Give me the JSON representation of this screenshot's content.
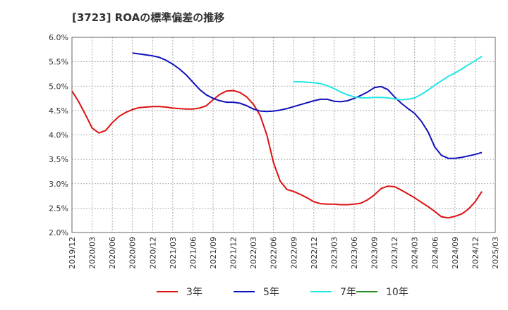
{
  "chart_data": {
    "type": "line",
    "title": "[3723]  ROAの標準偏差の推移",
    "xlabel": "",
    "ylabel": "",
    "ylim": [
      2.0,
      6.0
    ],
    "y_ticks": [
      "2.0%",
      "2.5%",
      "3.0%",
      "3.5%",
      "4.0%",
      "4.5%",
      "5.0%",
      "5.5%",
      "6.0%"
    ],
    "y_tick_values": [
      2.0,
      2.5,
      3.0,
      3.5,
      4.0,
      4.5,
      5.0,
      5.5,
      6.0
    ],
    "x_ticks": [
      "2019/12",
      "2020/03",
      "2020/06",
      "2020/09",
      "2020/12",
      "2021/03",
      "2021/06",
      "2021/09",
      "2021/12",
      "2022/03",
      "2022/06",
      "2022/09",
      "2022/12",
      "2023/03",
      "2023/06",
      "2023/09",
      "2023/12",
      "2024/03",
      "2024/06",
      "2024/09",
      "2024/12",
      "2025/03"
    ],
    "grid": true,
    "legend_position": "bottom",
    "series": [
      {
        "name": "3年",
        "color": "#dd1111",
        "points": [
          [
            "2019/12",
            4.9
          ],
          [
            "2020/01",
            4.68
          ],
          [
            "2020/02",
            4.42
          ],
          [
            "2020/03",
            4.14
          ],
          [
            "2020/04",
            4.04
          ],
          [
            "2020/05",
            4.09
          ],
          [
            "2020/06",
            4.25
          ],
          [
            "2020/07",
            4.38
          ],
          [
            "2020/08",
            4.46
          ],
          [
            "2020/09",
            4.52
          ],
          [
            "2020/10",
            4.56
          ],
          [
            "2020/11",
            4.57
          ],
          [
            "2020/12",
            4.58
          ],
          [
            "2021/01",
            4.58
          ],
          [
            "2021/02",
            4.57
          ],
          [
            "2021/03",
            4.55
          ],
          [
            "2021/04",
            4.54
          ],
          [
            "2021/05",
            4.53
          ],
          [
            "2021/06",
            4.53
          ],
          [
            "2021/07",
            4.55
          ],
          [
            "2021/08",
            4.6
          ],
          [
            "2021/09",
            4.72
          ],
          [
            "2021/10",
            4.83
          ],
          [
            "2021/11",
            4.9
          ],
          [
            "2021/12",
            4.91
          ],
          [
            "2022/01",
            4.87
          ],
          [
            "2022/02",
            4.78
          ],
          [
            "2022/03",
            4.63
          ],
          [
            "2022/04",
            4.4
          ],
          [
            "2022/05",
            4.0
          ],
          [
            "2022/06",
            3.43
          ],
          [
            "2022/07",
            3.05
          ],
          [
            "2022/08",
            2.88
          ],
          [
            "2022/09",
            2.84
          ],
          [
            "2022/10",
            2.78
          ],
          [
            "2022/11",
            2.71
          ],
          [
            "2022/12",
            2.63
          ],
          [
            "2023/01",
            2.59
          ],
          [
            "2023/02",
            2.58
          ],
          [
            "2023/03",
            2.58
          ],
          [
            "2023/04",
            2.57
          ],
          [
            "2023/05",
            2.57
          ],
          [
            "2023/06",
            2.58
          ],
          [
            "2023/07",
            2.6
          ],
          [
            "2023/08",
            2.67
          ],
          [
            "2023/09",
            2.77
          ],
          [
            "2023/10",
            2.9
          ],
          [
            "2023/11",
            2.95
          ],
          [
            "2023/12",
            2.94
          ],
          [
            "2024/01",
            2.87
          ],
          [
            "2024/02",
            2.79
          ],
          [
            "2024/03",
            2.71
          ],
          [
            "2024/04",
            2.62
          ],
          [
            "2024/05",
            2.53
          ],
          [
            "2024/06",
            2.43
          ],
          [
            "2024/07",
            2.32
          ],
          [
            "2024/08",
            2.3
          ],
          [
            "2024/09",
            2.33
          ],
          [
            "2024/10",
            2.38
          ],
          [
            "2024/11",
            2.48
          ],
          [
            "2024/12",
            2.63
          ],
          [
            "2025/01",
            2.84
          ]
        ]
      },
      {
        "name": "5年",
        "color": "#1111bb",
        "points": [
          [
            "2020/09",
            5.68
          ],
          [
            "2020/10",
            5.66
          ],
          [
            "2020/11",
            5.64
          ],
          [
            "2020/12",
            5.62
          ],
          [
            "2021/01",
            5.59
          ],
          [
            "2021/02",
            5.53
          ],
          [
            "2021/03",
            5.45
          ],
          [
            "2021/04",
            5.35
          ],
          [
            "2021/05",
            5.23
          ],
          [
            "2021/06",
            5.08
          ],
          [
            "2021/07",
            4.93
          ],
          [
            "2021/08",
            4.82
          ],
          [
            "2021/09",
            4.75
          ],
          [
            "2021/10",
            4.7
          ],
          [
            "2021/11",
            4.67
          ],
          [
            "2021/12",
            4.67
          ],
          [
            "2022/01",
            4.65
          ],
          [
            "2022/02",
            4.6
          ],
          [
            "2022/03",
            4.53
          ],
          [
            "2022/04",
            4.49
          ],
          [
            "2022/05",
            4.48
          ],
          [
            "2022/06",
            4.49
          ],
          [
            "2022/07",
            4.51
          ],
          [
            "2022/08",
            4.54
          ],
          [
            "2022/09",
            4.58
          ],
          [
            "2022/10",
            4.62
          ],
          [
            "2022/11",
            4.66
          ],
          [
            "2022/12",
            4.7
          ],
          [
            "2023/01",
            4.73
          ],
          [
            "2023/02",
            4.73
          ],
          [
            "2023/03",
            4.69
          ],
          [
            "2023/04",
            4.68
          ],
          [
            "2023/05",
            4.7
          ],
          [
            "2023/06",
            4.75
          ],
          [
            "2023/07",
            4.81
          ],
          [
            "2023/08",
            4.88
          ],
          [
            "2023/09",
            4.97
          ],
          [
            "2023/10",
            4.99
          ],
          [
            "2023/11",
            4.93
          ],
          [
            "2023/12",
            4.78
          ],
          [
            "2024/01",
            4.65
          ],
          [
            "2024/02",
            4.54
          ],
          [
            "2024/03",
            4.44
          ],
          [
            "2024/04",
            4.28
          ],
          [
            "2024/05",
            4.06
          ],
          [
            "2024/06",
            3.75
          ],
          [
            "2024/07",
            3.58
          ],
          [
            "2024/08",
            3.52
          ],
          [
            "2024/09",
            3.52
          ],
          [
            "2024/10",
            3.54
          ],
          [
            "2024/11",
            3.57
          ],
          [
            "2024/12",
            3.6
          ],
          [
            "2025/01",
            3.64
          ]
        ]
      },
      {
        "name": "7年",
        "color": "#22e5e5",
        "points": [
          [
            "2022/09",
            5.09
          ],
          [
            "2022/10",
            5.09
          ],
          [
            "2022/11",
            5.08
          ],
          [
            "2022/12",
            5.07
          ],
          [
            "2023/01",
            5.05
          ],
          [
            "2023/02",
            5.01
          ],
          [
            "2023/03",
            4.95
          ],
          [
            "2023/04",
            4.88
          ],
          [
            "2023/05",
            4.82
          ],
          [
            "2023/06",
            4.78
          ],
          [
            "2023/07",
            4.76
          ],
          [
            "2023/08",
            4.76
          ],
          [
            "2023/09",
            4.77
          ],
          [
            "2023/10",
            4.77
          ],
          [
            "2023/11",
            4.76
          ],
          [
            "2023/12",
            4.74
          ],
          [
            "2024/01",
            4.72
          ],
          [
            "2024/02",
            4.73
          ],
          [
            "2024/03",
            4.76
          ],
          [
            "2024/04",
            4.83
          ],
          [
            "2024/05",
            4.92
          ],
          [
            "2024/06",
            5.02
          ],
          [
            "2024/07",
            5.11
          ],
          [
            "2024/08",
            5.2
          ],
          [
            "2024/09",
            5.27
          ],
          [
            "2024/10",
            5.35
          ],
          [
            "2024/11",
            5.44
          ],
          [
            "2024/12",
            5.52
          ],
          [
            "2025/01",
            5.61
          ]
        ]
      },
      {
        "name": "10年",
        "color": "#228b22",
        "points": []
      }
    ]
  }
}
